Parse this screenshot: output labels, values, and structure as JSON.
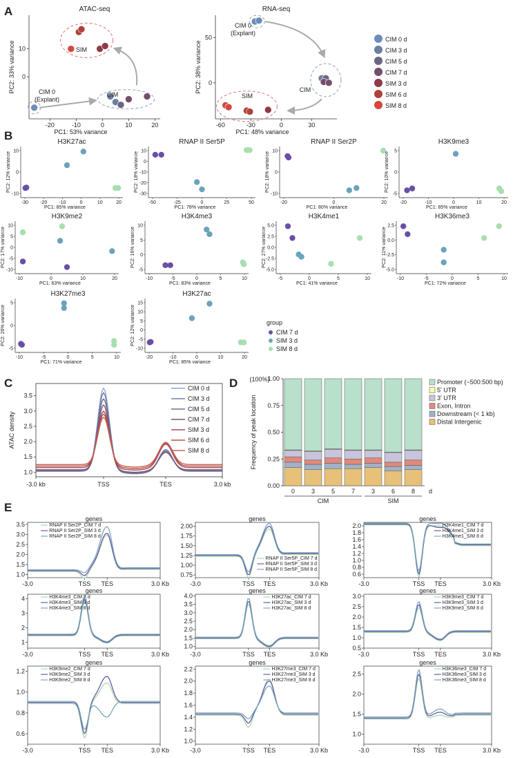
{
  "panel_labels": {
    "a": "A",
    "b": "B",
    "c": "C",
    "d": "D",
    "e": "E"
  },
  "colors": {
    "CIM 0 d": "#6d8db8",
    "CIM 3 d": "#6b7f9f",
    "CIM 5 d": "#6e6584",
    "CIM 7 d": "#744f6b",
    "SIM 3 d": "#8f3a48",
    "SIM 6 d": "#b0413a",
    "SIM 8 d": "#d4483d",
    "B_CIM 7 d": "#6a4fa6",
    "B_SIM 3 d": "#6ba3bd",
    "B_SIM 8 d": "#a7dfae"
  },
  "panel_a": {
    "legend": [
      "CIM 0 d",
      "CIM 3 d",
      "CIM 5 d",
      "CIM 7 d",
      "SIM 3 d",
      "SIM 6 d",
      "SIM 8 d"
    ],
    "atac": {
      "title": "ATAC-seq",
      "xlabel": "PC1: 53% variance",
      "ylabel": "PC2: 33% variance",
      "xticks": [
        "-20",
        "-10",
        "0",
        "10",
        "20"
      ],
      "yticks": [
        "10",
        "0"
      ],
      "labels": {
        "cim0": "CIM 0",
        "explant": "(Explant)",
        "cim": "CIM",
        "sim": "SIM"
      },
      "points": [
        {
          "x": -26,
          "y": -11,
          "g": "CIM 0 d"
        },
        {
          "x": 3,
          "y": -7,
          "g": "CIM 3 d"
        },
        {
          "x": 5,
          "y": -9,
          "g": "CIM 3 d"
        },
        {
          "x": 7,
          "y": -10,
          "g": "CIM 5 d"
        },
        {
          "x": 10,
          "y": -8,
          "g": "CIM 7 d"
        },
        {
          "x": 17,
          "y": -7,
          "g": "CIM 7 d"
        },
        {
          "x": -1,
          "y": 10,
          "g": "SIM 3 d"
        },
        {
          "x": 1,
          "y": 11,
          "g": "SIM 3 d"
        },
        {
          "x": -9,
          "y": 16,
          "g": "SIM 6 d"
        },
        {
          "x": -8,
          "y": 17,
          "g": "SIM 6 d"
        },
        {
          "x": -12,
          "y": 10,
          "g": "SIM 8 d"
        }
      ]
    },
    "rna": {
      "title": "RNA-seq",
      "xlabel": "PC1: 48% variance",
      "ylabel": "PC2: 38% variance",
      "xticks": [
        "-60",
        "-30",
        "0",
        "30"
      ],
      "yticks": [
        "50",
        "0"
      ],
      "labels": {
        "cim0": "CIM 0",
        "explant": "(Explant)",
        "cim": "CIM",
        "sim": "SIM"
      },
      "points": [
        {
          "x": -26,
          "y": 68,
          "g": "CIM 0 d"
        },
        {
          "x": -22,
          "y": 69,
          "g": "CIM 0 d"
        },
        {
          "x": 40,
          "y": 5,
          "g": "CIM 3 d"
        },
        {
          "x": 44,
          "y": 5,
          "g": "CIM 5 d"
        },
        {
          "x": 42,
          "y": 1,
          "g": "CIM 7 d"
        },
        {
          "x": 47,
          "y": 0,
          "g": "CIM 7 d"
        },
        {
          "x": -55,
          "y": -25,
          "g": "SIM 8 d"
        },
        {
          "x": -52,
          "y": -27,
          "g": "SIM 8 d"
        },
        {
          "x": -34,
          "y": -31,
          "g": "SIM 6 d"
        },
        {
          "x": -31,
          "y": -32,
          "g": "SIM 6 d"
        },
        {
          "x": -13,
          "y": -30,
          "g": "SIM 3 d"
        }
      ]
    }
  },
  "panel_b": {
    "legend_title": "group",
    "legend": [
      "CIM 7 d",
      "SIM 3 d",
      "SIM 8 d"
    ],
    "plots": [
      {
        "title": "H3K27ac",
        "xlabel": "PC1: 85% variance",
        "ylabel": "PC2: 12% variance",
        "xticks": [
          "-30",
          "-20",
          "-10",
          "0",
          "10",
          "20"
        ],
        "yticks": [
          "10",
          "0",
          "-10"
        ]
      },
      {
        "title": "RNAP II Ser5P",
        "xlabel": "PC1: 78% variance",
        "ylabel": "PC2: 18% variance",
        "xticks": [
          "-50",
          "-25",
          "0",
          "25",
          "50"
        ],
        "yticks": [
          "10",
          "0",
          "-10",
          "-20",
          "-30"
        ]
      },
      {
        "title": "RNAP II Ser2P",
        "xlabel": "PC1: 80% variance",
        "ylabel": "PC2: 18% variance",
        "xticks": [
          "-20",
          "0",
          "20"
        ],
        "yticks": [
          "10",
          "0",
          "-10"
        ]
      },
      {
        "title": "H3K9me3",
        "xlabel": "PC1: 85% variance",
        "ylabel": "PC2: 10% variance",
        "xticks": [
          "-20",
          "-10",
          "0",
          "10",
          "20"
        ],
        "yticks": [
          "5",
          "0",
          "-5"
        ]
      },
      {
        "title": "H3K9me2",
        "xlabel": "PC1: 63% variance",
        "ylabel": "PC2: 17% variance",
        "xticks": [
          "-10",
          "0",
          "10",
          "20"
        ],
        "yticks": [
          "10",
          "5",
          "0",
          "-5",
          "-10"
        ]
      },
      {
        "title": "H3K4me3",
        "xlabel": "PC1: 83% variance",
        "ylabel": "PC2: 16% variance",
        "xticks": [
          "-10",
          "-5",
          "0",
          "5",
          "10"
        ],
        "yticks": [
          "10",
          "5",
          "0",
          "-5"
        ]
      },
      {
        "title": "H3K4me1",
        "xlabel": "PC1: 41% variance",
        "ylabel": "PC2: 27% variance",
        "xticks": [
          "-5",
          "0",
          "5",
          "10"
        ],
        "yticks": [
          "5.0",
          "2.5",
          "0.0",
          "-2.5",
          "-5.0"
        ]
      },
      {
        "title": "H3K36me3",
        "xlabel": "PC1: 72% variance",
        "ylabel": "PC2: 11% variance",
        "xticks": [
          "-10",
          "-5",
          "0",
          "5",
          "10"
        ],
        "yticks": [
          "2.5",
          "0.0",
          "-2.5",
          "-5.0"
        ]
      },
      {
        "title": "H3K27me3",
        "xlabel": "PC1: 71% variance",
        "ylabel": "PC2: 26% variance",
        "xticks": [
          "-10",
          "-5",
          "0",
          "5",
          "10"
        ],
        "yticks": [
          "5",
          "0",
          "-5"
        ]
      },
      {
        "title": "H3K27ac",
        "xlabel": "PC1: 85% variance",
        "ylabel": "PC2: 12% variance",
        "xticks": [
          "-20",
          "-10",
          "0",
          "10",
          "20"
        ],
        "yticks": [
          "15",
          "10",
          "5",
          "0",
          "-5",
          "-10"
        ]
      }
    ]
  },
  "panel_c": {
    "ylabel": "ATAC density",
    "yticks": [
      "3.5",
      "3.0",
      "2.5",
      "2.0",
      "1.5",
      "1.0"
    ],
    "xticks": [
      "-3.0 kb",
      "TSS",
      "TES",
      "3.0 kb"
    ],
    "legend": [
      "CIM 0 d",
      "CIM 3 d",
      "CIM 5 d",
      "CIM 7 d",
      "SIM 3 d",
      "SIM 6 d",
      "SIM 8 d"
    ],
    "series_colors": [
      "#8aa8d6",
      "#6b7faa",
      "#7a6a90",
      "#80556e",
      "#a04a55",
      "#b85048",
      "#c86050"
    ],
    "series": [
      {
        "name": "CIM 0 d",
        "tss": 3.75,
        "tes": 1.75,
        "base": 1.05
      },
      {
        "name": "CIM 3 d",
        "tss": 3.6,
        "tes": 1.72,
        "base": 1.03
      },
      {
        "name": "CIM 5 d",
        "tss": 3.4,
        "tes": 1.68,
        "base": 1.05
      },
      {
        "name": "CIM 7 d",
        "tss": 3.2,
        "tes": 1.65,
        "base": 1.08
      },
      {
        "name": "SIM 3 d",
        "tss": 3.0,
        "tes": 1.92,
        "base": 1.15
      },
      {
        "name": "SIM 6 d",
        "tss": 2.9,
        "tes": 1.95,
        "base": 1.2
      },
      {
        "name": "SIM 8 d",
        "tss": 2.8,
        "tes": 1.98,
        "base": 1.25
      }
    ]
  },
  "panel_d": {
    "ylabel": "Frequency of peak location",
    "percent_label": "(100%)",
    "yticks": [
      "1.00",
      "0.75",
      "0.50",
      "0.25",
      "0.00"
    ],
    "categories": [
      "0",
      "3",
      "5",
      "7",
      "3",
      "6",
      "8"
    ],
    "group_labels": [
      "CIM",
      "SIM"
    ],
    "x_unit": "d",
    "legend": [
      "Promoter (~500:500 bp)",
      "5' UTR",
      "3' UTR",
      "Exon, Intron",
      "Downstream (< 1 kb)",
      "Distal Intergenic"
    ],
    "segment_colors": [
      "#b8e0cb",
      "#fdf7b0",
      "#c7c4dc",
      "#e2897a",
      "#9fb2c9",
      "#e7c07a"
    ],
    "stack_order_bottom_up": [
      "Distal Intergenic",
      "Downstream (< 1 kb)",
      "Exon, Intron",
      "3' UTR",
      "5' UTR",
      "Promoter (~500:500 bp)"
    ],
    "values": [
      [
        0.17,
        0.05,
        0.05,
        0.06,
        0.005,
        0.665
      ],
      [
        0.15,
        0.05,
        0.04,
        0.08,
        0.005,
        0.675
      ],
      [
        0.16,
        0.05,
        0.05,
        0.08,
        0.005,
        0.655
      ],
      [
        0.16,
        0.04,
        0.05,
        0.08,
        0.005,
        0.665
      ],
      [
        0.17,
        0.04,
        0.05,
        0.07,
        0.005,
        0.665
      ],
      [
        0.14,
        0.04,
        0.04,
        0.09,
        0.005,
        0.685
      ],
      [
        0.15,
        0.04,
        0.05,
        0.09,
        0.005,
        0.665
      ]
    ]
  },
  "panel_e": {
    "series_colors": [
      "#a9dcae",
      "#6a56a8",
      "#7aa7bd"
    ],
    "plots": [
      {
        "title": "genes",
        "legend": [
          "RNAP II Ser2P_CIM 7 d",
          "RNAP II Ser2P_SIM 3 d",
          "RNAP II Ser2P_SIM 8 d"
        ],
        "yticks": [
          "3.5",
          "3.0",
          "2.5",
          "2.0",
          "1.5",
          "1.0"
        ],
        "ymin": 0.85,
        "ymax": 3.6,
        "base": 1.2,
        "tss": 0.95,
        "tes": [
          3.0,
          3.05,
          3.35
        ],
        "endv": 1.3,
        "ticks": [
          "-3.0",
          "TSS",
          "TES",
          "3.0 Kb"
        ]
      },
      {
        "title": "genes",
        "legend": [
          "RNAP II Ser5P_CIM 7 d",
          "RNAP II Ser5P_SIM 3 d",
          "RNAP II Ser5P_SIM 8 d"
        ],
        "yticks": [
          "2.00",
          "1.75",
          "1.50",
          "1.25",
          "1.00",
          "0.75"
        ],
        "ymin": 0.68,
        "ymax": 2.1,
        "base": 1.25,
        "tss": 0.75,
        "tes": [
          1.95,
          2.0,
          2.05
        ],
        "endv": 1.3,
        "ticks": [
          "-3.0",
          "TSS",
          "TES",
          "3.0 Kb"
        ]
      },
      {
        "title": "genes",
        "legend": [
          "H3K4me1_CIM 7 d",
          "H3K4me1_SIM 3 d",
          "H3K4me1_SIM 8 d"
        ],
        "yticks": [
          "2.0",
          "1.8",
          "1.6",
          "1.4",
          "1.2",
          "1.0",
          "0.8",
          "0.6"
        ],
        "ymin": 0.5,
        "ymax": 2.1,
        "base": 2.05,
        "tss": 0.6,
        "tes": [
          2.0,
          1.95,
          2.05
        ],
        "endv": 1.45,
        "ticks": [
          "-3.0",
          "TSS",
          "TES",
          "3.0 Kb"
        ]
      },
      {
        "title": "genes",
        "legend": [
          "H3K4me3_CIM 7 d",
          "H3K4me3_SIM 3 d",
          "H3K4me3_SIM 8 d"
        ],
        "yticks": [
          "4",
          "3",
          "2",
          "1"
        ],
        "ymin": 0.6,
        "ymax": 4.3,
        "base": 1.5,
        "tss": 4.0,
        "tes": [
          1.0,
          1.0,
          1.0
        ],
        "endv": 1.5,
        "ticks": [
          "-3.0",
          "TSS",
          "TES",
          "3.0 Kb"
        ]
      },
      {
        "title": "genes",
        "legend": [
          "H3K27ac_CIM 7 d",
          "H3K27ac_SIM 3 d",
          "H3K27ac_SIM 8 d"
        ],
        "yticks": [
          "4.0",
          "3.5",
          "3.0",
          "2.5",
          "2.0",
          "1.5",
          "1.0"
        ],
        "ymin": 0.9,
        "ymax": 4.1,
        "base": 1.5,
        "tss": 3.7,
        "tes": [
          1.0,
          1.0,
          1.0
        ],
        "endv": 1.5,
        "ticks": [
          "-3.0",
          "TSS",
          "TES",
          "3.0 Kb"
        ]
      },
      {
        "title": "genes",
        "legend": [
          "H3K9me3_CIM 7 d",
          "H3K9me3_SIM 3 d",
          "H3K9me3_SIM 8 d"
        ],
        "yticks": [
          "3.0",
          "2.5",
          "2.0",
          "1.5",
          "1.0",
          "0.5"
        ],
        "ymin": 0.5,
        "ymax": 3.1,
        "base": 1.3,
        "tss": 2.6,
        "tes": [
          0.9,
          0.9,
          0.9
        ],
        "endv": 1.3,
        "ticks": [
          "-3.0",
          "TSS",
          "TES",
          "3.0 Kb"
        ]
      },
      {
        "title": "genes",
        "legend": [
          "H3K9me2_CIM 7 d",
          "H3K9me2_SIM 3 d",
          "H3K9me2_SIM 8 d"
        ],
        "yticks": [
          "1.2",
          "1.0",
          "0.8",
          "0.6"
        ],
        "ymin": 0.5,
        "ymax": 1.25,
        "base": 0.9,
        "tss": 0.6,
        "tes": [
          1.1,
          1.15,
          0.75
        ],
        "endv": 0.9,
        "ticks": [
          "-3.0",
          "TSS",
          "TES",
          "3.0 Kb"
        ]
      },
      {
        "title": "genes",
        "legend": [
          "H3K27me3_CIM 7 d",
          "H3K27me3_SIM 3 d",
          "H3K27me3_SIM 8 d"
        ],
        "yticks": [
          "2.2",
          "2.0",
          "1.8",
          "1.6",
          "1.4",
          "1.2",
          "1.0"
        ],
        "ymin": 0.95,
        "ymax": 2.25,
        "base": 1.45,
        "tss": 1.3,
        "tes": [
          2.05,
          2.0,
          1.9
        ],
        "endv": 1.45,
        "ticks": [
          "-3.0",
          "TSS",
          "TES",
          "3.0 Kb"
        ]
      },
      {
        "title": "genes",
        "legend": [
          "H3K36me3_CIM 7 d",
          "H3K36me3_SIM 3 d",
          "H3K36me3_SIM 8 d"
        ],
        "yticks": [
          "2.5",
          "2.0",
          "1.5",
          "1.0"
        ],
        "ymin": 0.75,
        "ymax": 2.7,
        "base": 1.4,
        "tss": 2.5,
        "tes": [
          1.5,
          1.55,
          1.6
        ],
        "endv": 1.5,
        "ticks": [
          "-3.0",
          "TSS",
          "TES",
          "3.0 Kb"
        ]
      }
    ]
  }
}
